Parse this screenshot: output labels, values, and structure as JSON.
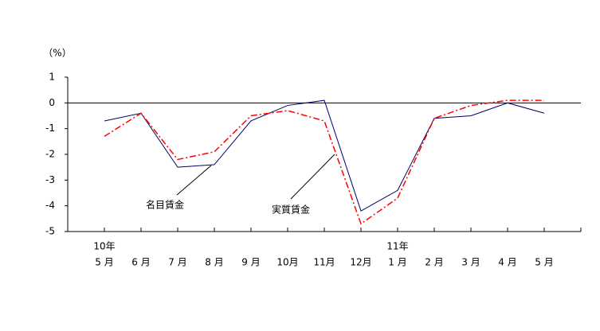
{
  "chart_data": {
    "type": "line",
    "y_unit_label": "（%）",
    "categories": [
      "5 月",
      "6 月",
      "7 月",
      "8 月",
      "9 月",
      "10月",
      "11月",
      "12月",
      "1 月",
      "2 月",
      "3 月",
      "4 月",
      "5 月"
    ],
    "year_labels": [
      "10年",
      null,
      null,
      null,
      null,
      null,
      null,
      null,
      "11年",
      null,
      null,
      null,
      null
    ],
    "series": [
      {
        "name": "名目賃金",
        "color": "#000066",
        "dash": "none",
        "values": [
          -0.7,
          -0.4,
          -2.5,
          -2.4,
          -0.7,
          -0.1,
          0.1,
          -4.2,
          -3.4,
          -0.6,
          -0.5,
          0.0,
          -0.4
        ]
      },
      {
        "name": "実質賃金",
        "color": "#ff0000",
        "dash": "8 3 2 3",
        "values": [
          -1.3,
          -0.4,
          -2.2,
          -1.9,
          -0.5,
          -0.3,
          -0.7,
          -4.7,
          -3.7,
          -0.6,
          -0.1,
          0.1,
          0.1
        ]
      }
    ],
    "ylim": [
      -5,
      1
    ],
    "yticks": [
      -5,
      -4,
      -3,
      -2,
      -1,
      0,
      1
    ]
  }
}
